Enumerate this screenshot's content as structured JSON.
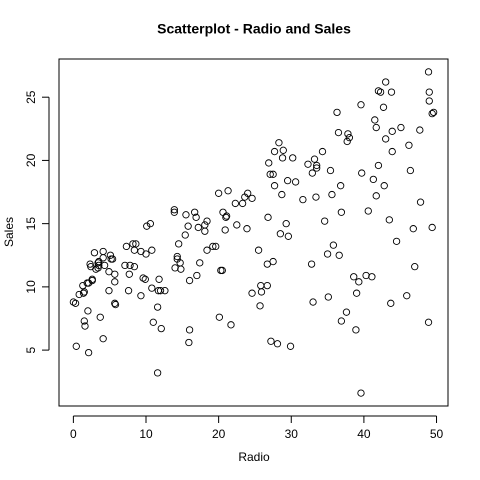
{
  "chart_data": {
    "type": "scatter",
    "title": "Scatterplot - Radio and Sales",
    "x_label": "Radio",
    "y_label": "Sales",
    "color": "#000000",
    "xlim": [
      -1.98,
      51.58
    ],
    "ylim": [
      0.58,
      28.02
    ],
    "xticks": [
      0,
      10,
      20,
      30,
      40,
      50
    ],
    "yticks": [
      5,
      10,
      15,
      20,
      25
    ],
    "x": [
      37.8,
      39.3,
      45.9,
      41.3,
      10.8,
      48.9,
      32.8,
      19.6,
      2.1,
      2.6,
      5.8,
      24,
      35.1,
      7.6,
      32.9,
      47.7,
      36.6,
      39.6,
      20.5,
      23.9,
      27.7,
      5.1,
      15.9,
      16.9,
      12.6,
      3.5,
      29.3,
      16.7,
      27.1,
      16,
      28.3,
      17.4,
      1.5,
      20,
      1.4,
      4.1,
      43.8,
      49.4,
      26.7,
      37.7,
      22.3,
      33.4,
      27.7,
      8.4,
      25.7,
      22.5,
      9.9,
      41.5,
      15.8,
      11.7,
      3.1,
      9.6,
      41.7,
      46.2,
      28.8,
      49.4,
      28.1,
      19.2,
      49.6,
      29.5,
      2,
      42.7,
      15.5,
      29.6,
      42.8,
      9.3,
      24.6,
      14.5,
      27.5,
      43.9,
      30.6,
      14.3,
      33,
      5.7,
      24.6,
      43.7,
      1.6,
      28.5,
      29.9,
      7.7,
      26.7,
      4.1,
      20.3,
      44.5,
      43,
      18.4,
      27.5,
      40.6,
      25.5,
      47.8,
      4.9,
      1.5,
      33.5,
      36.5,
      14,
      31.6,
      3.5,
      21,
      42.3,
      41.7,
      4.3,
      36.3,
      10.1,
      17.2,
      34.3,
      46.4,
      11,
      0.3,
      0.4,
      26.9,
      8.2,
      38,
      15.4,
      20.6,
      46.8,
      35,
      14.3,
      0.8,
      36.9,
      16,
      26.8,
      21.7,
      2.4,
      34.6,
      32.3,
      11.8,
      38.9,
      0,
      49,
      12,
      39.6,
      2.9,
      27.2,
      33.5,
      38.6,
      47,
      39,
      28.9,
      25.9,
      43.9,
      17,
      35.4,
      33.2,
      5.7,
      14.8,
      1.9,
      7.3,
      49,
      40.3,
      25.8,
      13.9,
      8.4,
      23.3,
      39.7,
      21.1,
      11.6,
      43.5,
      1.3,
      36.9,
      18.4,
      18.1,
      35.8,
      18.1,
      36.8,
      14.7,
      3.4,
      37.6,
      5.2,
      23.6,
      10.6,
      11.6,
      20.9,
      20.1,
      7.1,
      3.4,
      48.9,
      30.2,
      7.8,
      2.3,
      10,
      2.6,
      5.4,
      5.7,
      43,
      21.3,
      45.1,
      2.1,
      28.7,
      13.9,
      12.1,
      41.1,
      10.8,
      4.1,
      42,
      35.6,
      3.7,
      4.9,
      9.3,
      42,
      8.6
    ],
    "values": [
      22.1,
      10.4,
      9.3,
      18.5,
      12.9,
      7.2,
      11.8,
      13.2,
      4.8,
      10.6,
      8.6,
      17.4,
      9.2,
      9.7,
      19,
      22.4,
      12.5,
      24.4,
      11.3,
      14.6,
      18,
      12.5,
      5.6,
      15.5,
      9.7,
      12,
      15,
      15.9,
      18.9,
      10.5,
      21.4,
      11.9,
      9.6,
      17.4,
      9.5,
      12.8,
      25.4,
      14.7,
      10.1,
      21.5,
      16.6,
      17.1,
      20.7,
      12.9,
      8.5,
      14.9,
      10.6,
      23.2,
      14.8,
      9.7,
      11.4,
      10.7,
      22.6,
      21.2,
      20.2,
      23.7,
      5.5,
      13.2,
      23.8,
      18.4,
      8.1,
      24.2,
      15.7,
      14,
      18,
      9.3,
      9.5,
      13.4,
      18.9,
      22.3,
      18.3,
      12.4,
      8.8,
      11,
      17,
      8.7,
      6.9,
      14.2,
      5.3,
      11,
      11.8,
      12.3,
      11.3,
      13.6,
      21.7,
      15.2,
      12,
      16,
      12.9,
      16.7,
      11.2,
      7.3,
      19.4,
      22.2,
      11.5,
      16.9,
      11.7,
      15.5,
      25.4,
      17.2,
      11.7,
      23.8,
      14.8,
      14.7,
      20.7,
      19.2,
      7.2,
      8.7,
      5.3,
      19.8,
      13.4,
      21.8,
      14.1,
      15.9,
      14.6,
      12.6,
      12.2,
      9.4,
      15.9,
      6.6,
      15.5,
      7,
      11.6,
      15.2,
      19.7,
      10.6,
      6.6,
      8.8,
      24.7,
      9.7,
      1.6,
      12.7,
      5.7,
      19.6,
      10.8,
      11.6,
      9.5,
      20.8,
      9.6,
      20.7,
      10.9,
      19.2,
      20.1,
      10.4,
      11.4,
      10.3,
      13.2,
      25.4,
      10.9,
      10.1,
      16.1,
      11.6,
      16.6,
      19,
      15.6,
      3.2,
      15.3,
      10.1,
      7.3,
      12.9,
      14.4,
      13.3,
      14.9,
      18,
      11.9,
      11.9,
      8,
      12.2,
      17.1,
      15,
      8.4,
      14.5,
      7.6,
      11.7,
      11.5,
      27,
      20.2,
      11.7,
      11.8,
      12.6,
      10.5,
      12.2,
      8.7,
      26.2,
      17.6,
      22.6,
      10.3,
      17.3,
      15.9,
      6.7,
      10.8,
      9.9,
      5.9,
      19.6,
      17.3,
      7.6,
      9.7,
      12.8,
      25.5,
      13.4
    ]
  }
}
